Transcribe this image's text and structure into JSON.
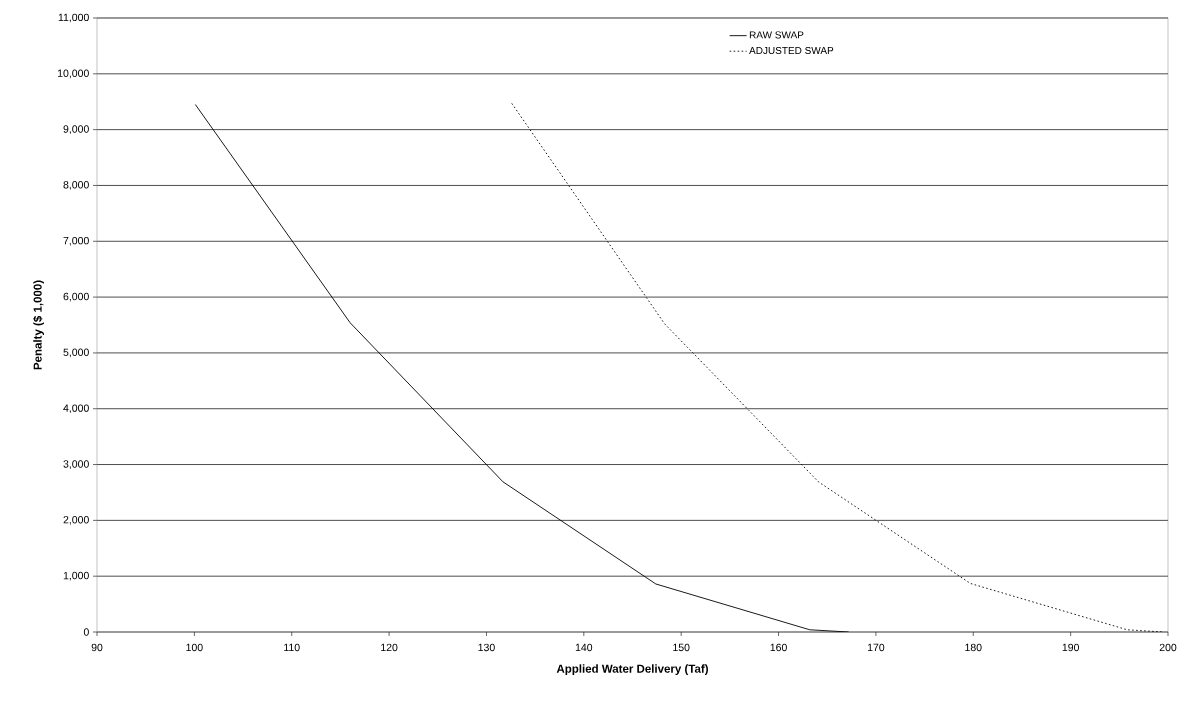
{
  "chart_data": {
    "type": "line",
    "xlabel": "Applied Water Delivery (Taf)",
    "ylabel": "Penalty ($ 1,000)",
    "series": [
      {
        "name": "RAW SWAP",
        "color": "#000000",
        "line_style": "solid",
        "x": [
          100.1,
          116,
          131.7,
          147.4,
          163.2,
          167.2
        ],
        "values": [
          9450,
          5540,
          2690,
          860,
          40,
          0
        ]
      },
      {
        "name": "ADJUSTED SWAP",
        "color": "#000000",
        "line_style": "dotted",
        "x": [
          132.6,
          148.3,
          164.1,
          179.7,
          195.8,
          199.5
        ],
        "values": [
          9470,
          5520,
          2690,
          870,
          40,
          0
        ]
      }
    ],
    "xlim": [
      90,
      200
    ],
    "xticks": [
      90,
      100,
      110,
      120,
      130,
      140,
      150,
      160,
      170,
      180,
      190,
      200
    ],
    "ylim": [
      0,
      11000
    ],
    "yticks": [
      {
        "value": 0,
        "label": "0"
      },
      {
        "value": 1000,
        "label": "1,000"
      },
      {
        "value": 2000,
        "label": "2,000"
      },
      {
        "value": 3000,
        "label": "3,000"
      },
      {
        "value": 4000,
        "label": "4,000"
      },
      {
        "value": 5000,
        "label": "5,000"
      },
      {
        "value": 6000,
        "label": "6,000"
      },
      {
        "value": 7000,
        "label": "7,000"
      },
      {
        "value": 8000,
        "label": "8,000"
      },
      {
        "value": 9000,
        "label": "9,000"
      },
      {
        "value": 10000,
        "label": "10,000"
      },
      {
        "value": 11000,
        "label": "11,000"
      }
    ],
    "grid": "y",
    "legend": "top right",
    "marker": "none"
  }
}
